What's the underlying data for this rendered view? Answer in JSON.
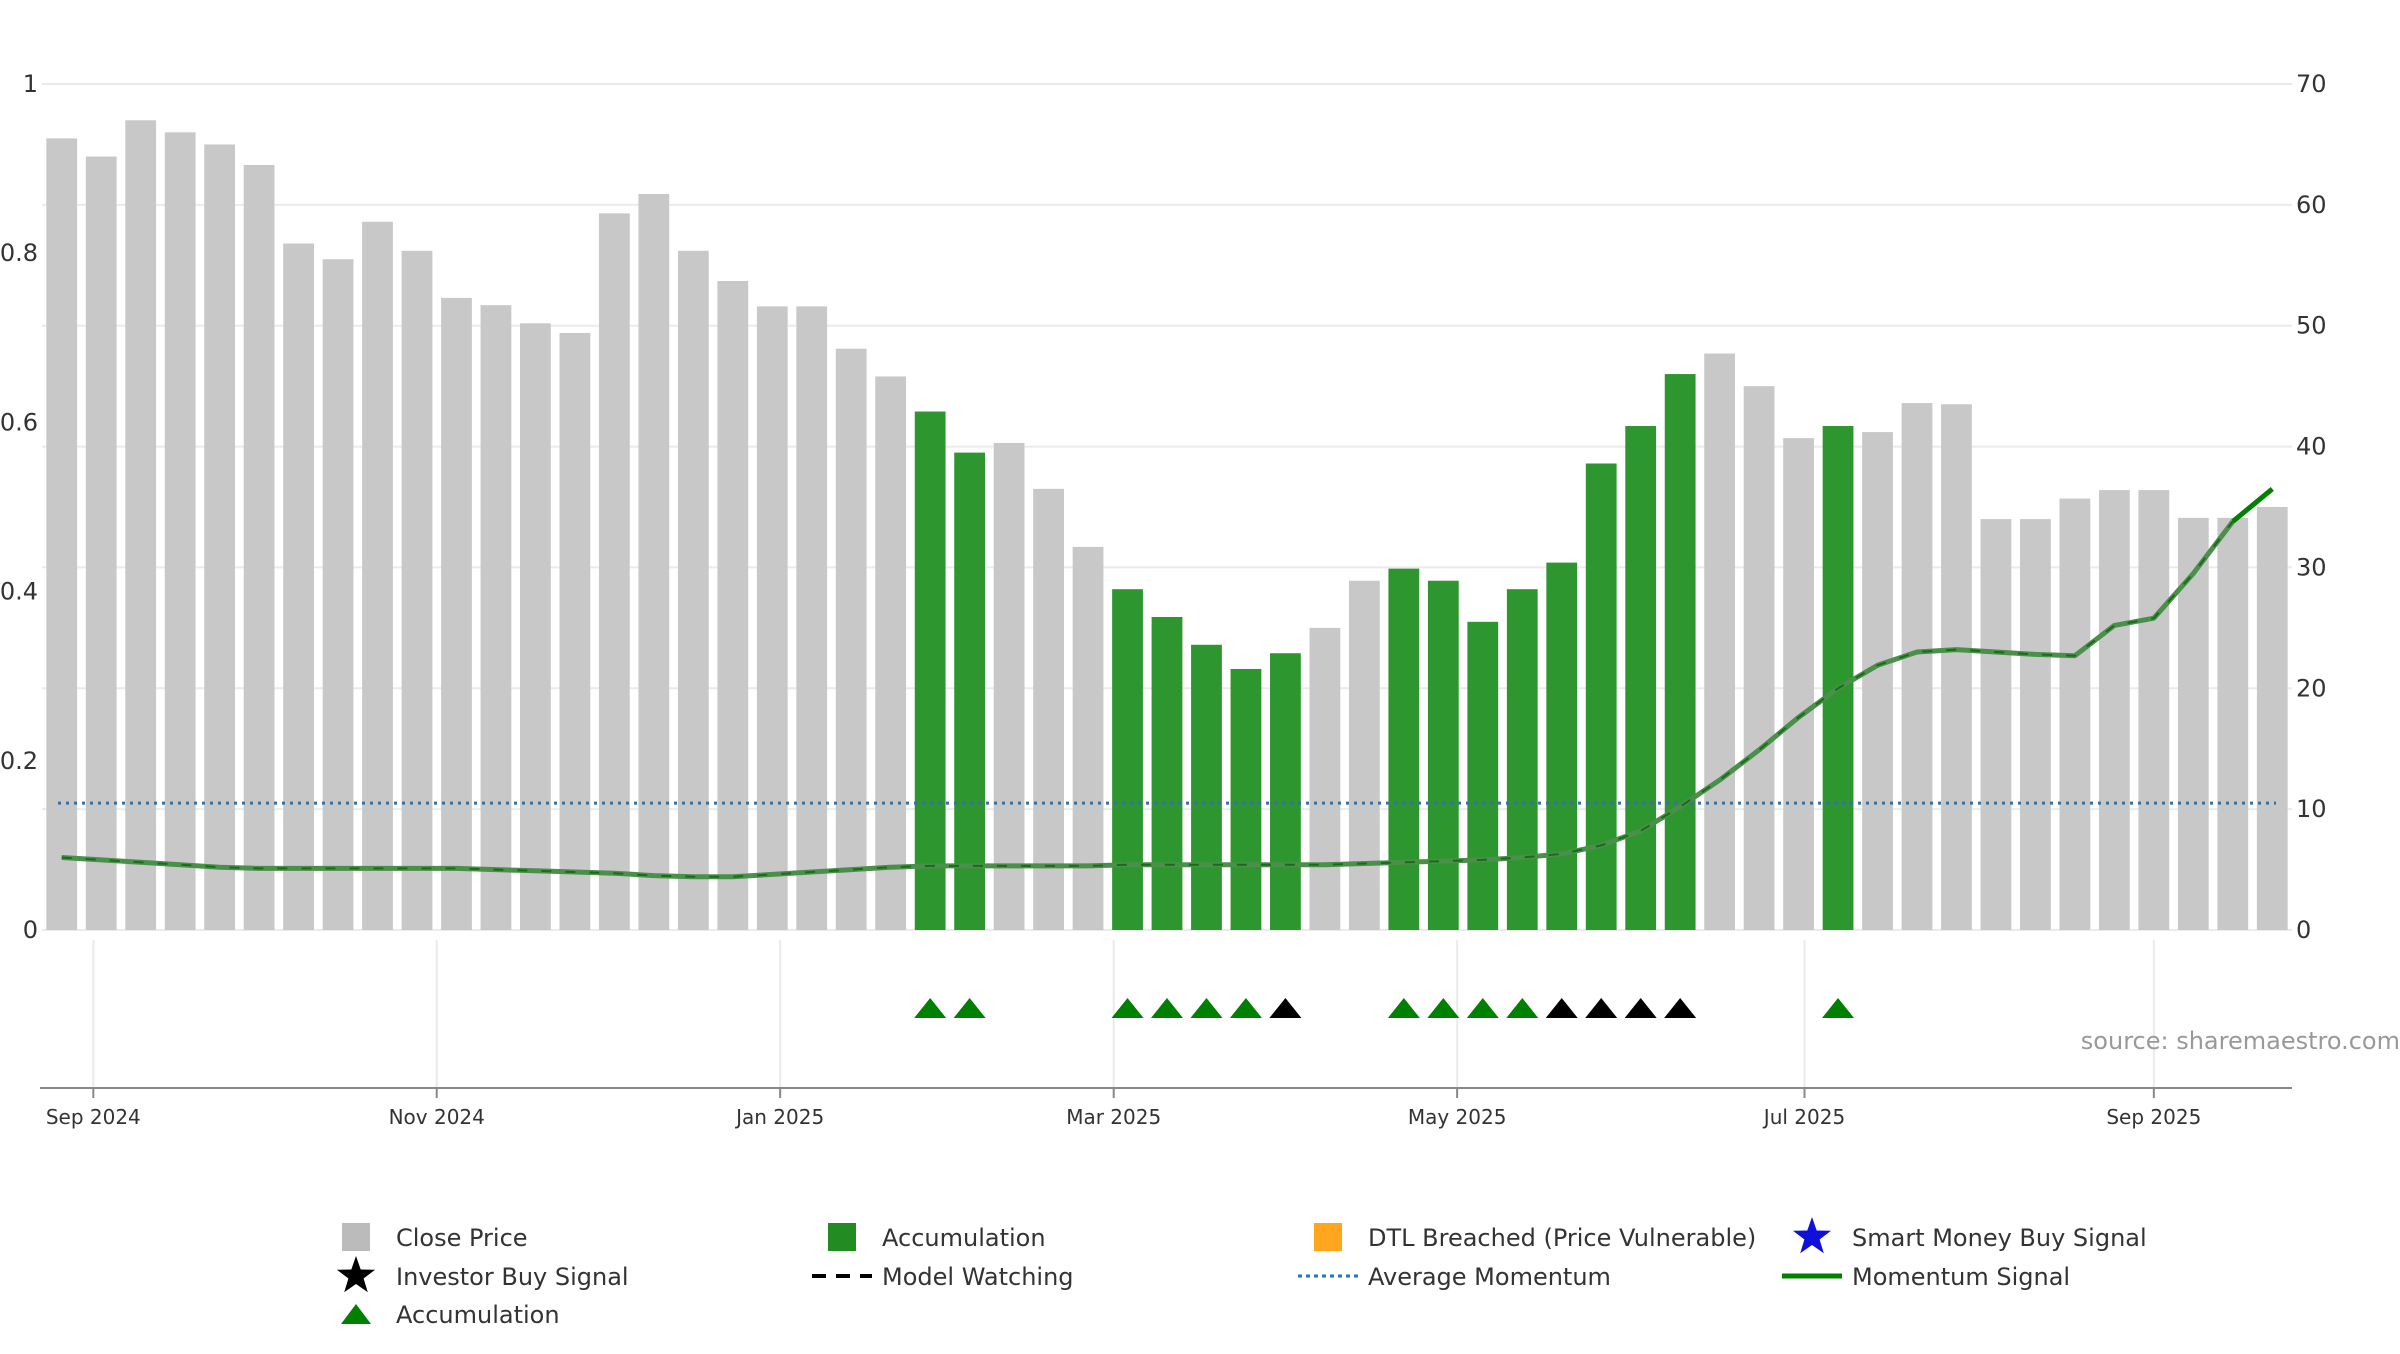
{
  "chart_data": {
    "type": "bar",
    "source_text": "source: sharemaestro.com",
    "left_axis": {
      "ylim": [
        0,
        1
      ],
      "ticks": [
        0,
        0.2,
        0.4,
        0.6,
        0.8,
        1
      ],
      "tick_labels": [
        "0",
        "0.2",
        "0.4",
        "0.6",
        "0.8",
        "1"
      ]
    },
    "right_axis": {
      "ylim": [
        0,
        70
      ],
      "ticks": [
        0,
        10,
        20,
        30,
        40,
        50,
        60,
        70
      ],
      "tick_labels": [
        "0",
        "10",
        "20",
        "30",
        "40",
        "50",
        "60",
        "70"
      ]
    },
    "x_axis": {
      "ticks": [
        1.3,
        10.0,
        18.7,
        27.15,
        35.85,
        44.65,
        53.5
      ],
      "tick_labels": [
        "Sep 2024",
        "Nov 2024",
        "Jan 2025",
        "Mar 2025",
        "May 2025",
        "Jul 2025",
        "Sep 2025"
      ]
    },
    "grid": true,
    "close_price": [
      65.5,
      64,
      67,
      66,
      65,
      63.3,
      56.8,
      55.5,
      58.6,
      56.2,
      52.3,
      51.7,
      50.2,
      49.4,
      59.3,
      60.9,
      56.2,
      53.7,
      51.6,
      51.6,
      48.1,
      45.8,
      42.9,
      39.5,
      40.3,
      36.5,
      31.7,
      28.2,
      25.9,
      23.6,
      21.6,
      22.9,
      25.0,
      28.9,
      29.9,
      28.9,
      25.5,
      28.2,
      30.4,
      38.6,
      41.7,
      46.0,
      47.7,
      45.0,
      40.7,
      41.7,
      41.2,
      43.6,
      43.5,
      34.0,
      34.0,
      35.7,
      36.4,
      36.4,
      34.1,
      34.1,
      35.0
    ],
    "accumulation_bars": [
      22,
      23,
      27,
      28,
      29,
      30,
      31,
      34,
      35,
      36,
      37,
      38,
      39,
      40,
      41,
      45
    ],
    "momentum": [
      6.0,
      5.8,
      5.6,
      5.4,
      5.2,
      5.1,
      5.1,
      5.1,
      5.1,
      5.1,
      5.1,
      5.0,
      4.9,
      4.8,
      4.7,
      4.5,
      4.4,
      4.4,
      4.6,
      4.8,
      5.0,
      5.2,
      5.3,
      5.3,
      5.3,
      5.3,
      5.3,
      5.4,
      5.4,
      5.4,
      5.4,
      5.4,
      5.4,
      5.5,
      5.6,
      5.7,
      5.8,
      6.0,
      6.3,
      7.0,
      8.2,
      10.2,
      12.4,
      14.9,
      17.6,
      20.0,
      21.9,
      23.0,
      23.2,
      23.0,
      22.8,
      22.7,
      25.2,
      25.8,
      29.5,
      33.8,
      36.5
    ],
    "momentum_bright_from": 55,
    "average_momentum": 10.5,
    "accumulation_markers": [
      22,
      23,
      27,
      28,
      29,
      30,
      34,
      35,
      36,
      37,
      45
    ],
    "investor_markers": [
      31,
      38,
      39,
      40,
      41
    ],
    "legend": [
      {
        "label": "Close Price",
        "kind": "square",
        "color": "#bbbbbb"
      },
      {
        "label": "Accumulation",
        "kind": "square",
        "color": "#228b22"
      },
      {
        "label": "DTL Breached (Price Vulnerable)",
        "kind": "square",
        "color": "#ffa51e"
      },
      {
        "label": "Smart Money Buy Signal",
        "kind": "star",
        "color": "#1010dd"
      },
      {
        "label": "Investor Buy Signal",
        "kind": "star",
        "color": "#000000"
      },
      {
        "label": "Model Watching",
        "kind": "dash",
        "color": "#000000"
      },
      {
        "label": "Average Momentum",
        "kind": "dotted",
        "color": "#1f77b4"
      },
      {
        "label": "Momentum Signal",
        "kind": "line",
        "color": "#008000"
      },
      {
        "label": "Accumulation",
        "kind": "triangle",
        "color": "#008000"
      }
    ],
    "colors": {
      "bar_gray": "#c8c8c8",
      "bar_green": "#2e962e",
      "momentum_dim": "#4a8f4a",
      "momentum_bright": "#008000",
      "average": "#3a6fa0",
      "triangle_green": "#008000",
      "triangle_black": "#000000"
    }
  }
}
